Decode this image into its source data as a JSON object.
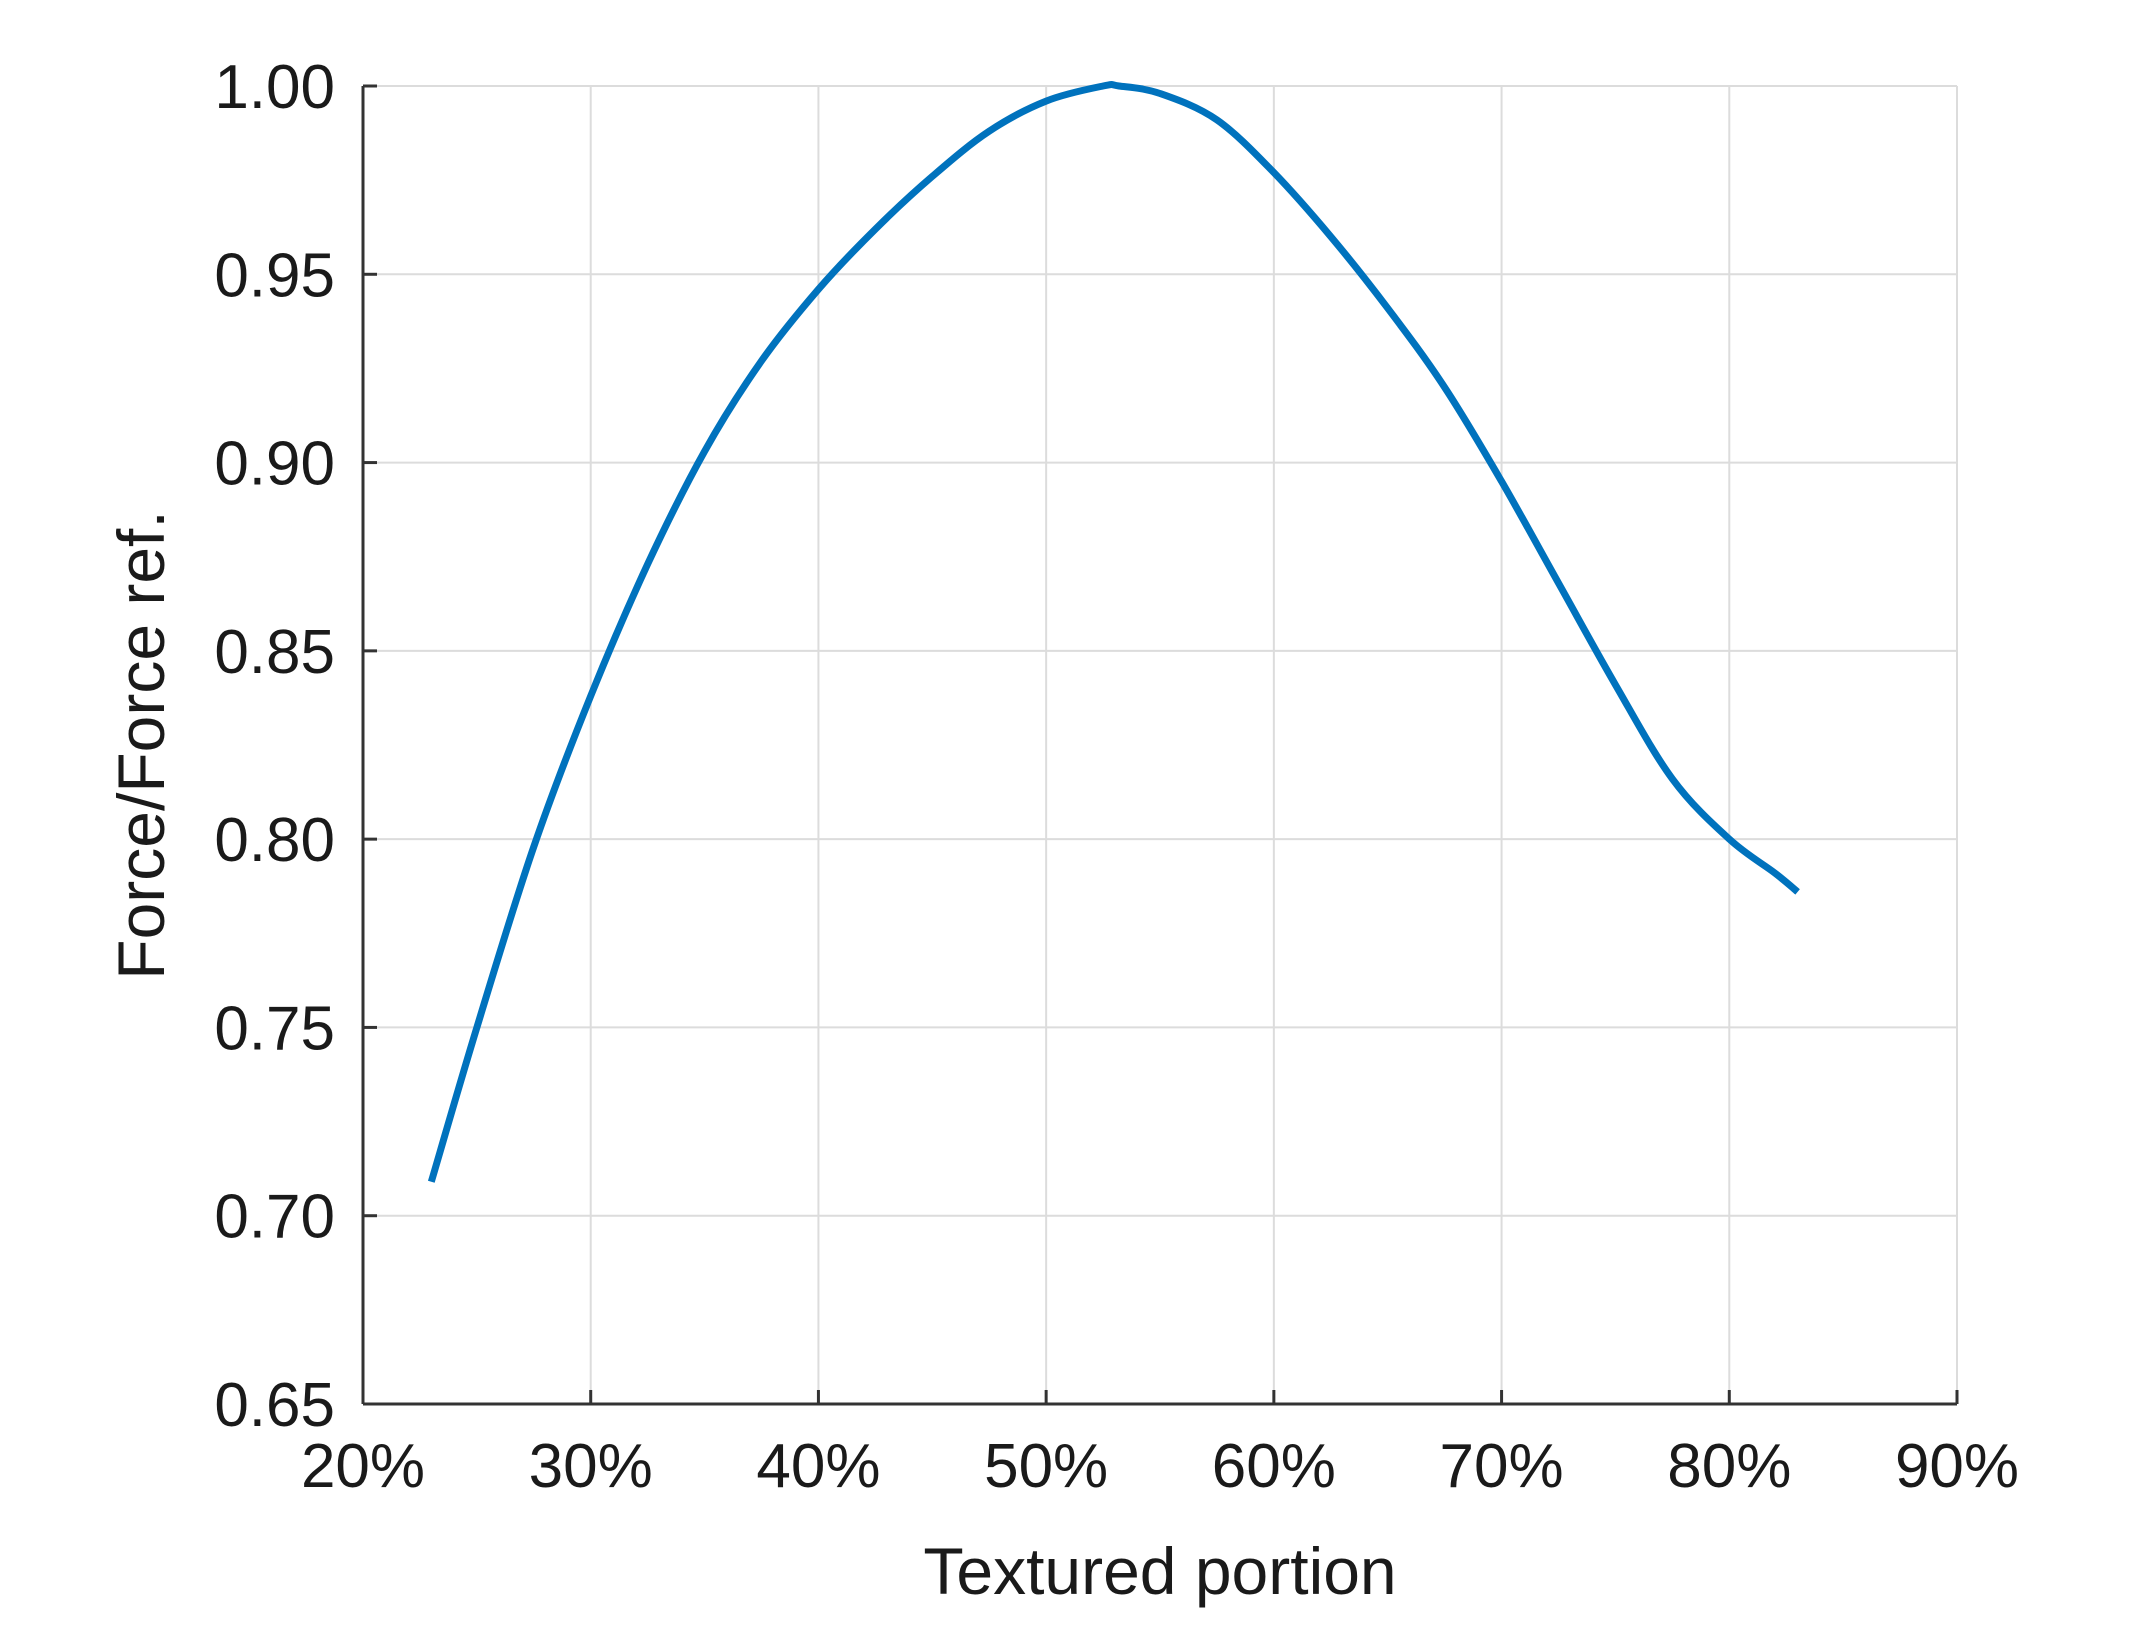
{
  "chart_data": {
    "type": "line",
    "title": "",
    "xlabel": "Textured portion",
    "ylabel": "Force/Force ref.",
    "xlim": [
      20,
      90
    ],
    "ylim": [
      0.65,
      1.0
    ],
    "x_ticks": [
      20,
      30,
      40,
      50,
      60,
      70,
      80,
      90
    ],
    "x_tick_labels": [
      "20%",
      "30%",
      "40%",
      "50%",
      "60%",
      "70%",
      "80%",
      "90%"
    ],
    "y_ticks": [
      0.65,
      0.7,
      0.75,
      0.8,
      0.85,
      0.9,
      0.95,
      1.0
    ],
    "y_tick_labels": [
      "0.65",
      "0.70",
      "0.75",
      "0.80",
      "0.85",
      "0.90",
      "0.95",
      "1.00"
    ],
    "grid": true,
    "line_color": "#0072BD",
    "series": [
      {
        "x": [
          23,
          25,
          27.5,
          30,
          32.5,
          35,
          37.5,
          40,
          42.5,
          45,
          47.5,
          50,
          52.5,
          53.2,
          55,
          57.5,
          60,
          62.5,
          65,
          67.5,
          70,
          72.5,
          75,
          77.5,
          80,
          82,
          83
        ],
        "y": [
          0.709,
          0.75,
          0.798,
          0.838,
          0.873,
          0.903,
          0.927,
          0.946,
          0.962,
          0.976,
          0.988,
          0.996,
          1.0,
          1.0,
          0.998,
          0.991,
          0.977,
          0.96,
          0.941,
          0.92,
          0.895,
          0.868,
          0.841,
          0.816,
          0.8,
          0.791,
          0.786
        ]
      }
    ]
  }
}
